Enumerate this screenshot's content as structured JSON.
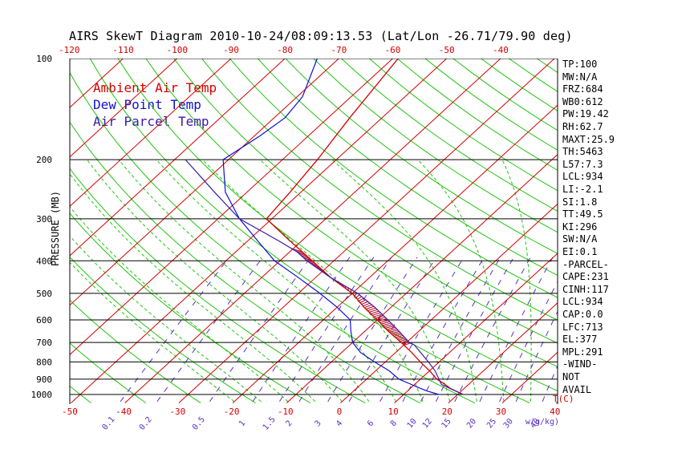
{
  "chart_data": {
    "type": "line",
    "title": "AIRS SkewT Diagram 2010-10-24/08:09:13.53 (Lat/Lon -26.71/79.90 deg)",
    "ylabel": "PRESSURE (MB)",
    "xlabel": "T(C)",
    "mixing_ratio_label": "w(g/kg)",
    "y_scale": "log",
    "ylim": [
      1050,
      100
    ],
    "pressure_ticks": [
      100,
      200,
      300,
      400,
      500,
      600,
      700,
      800,
      900,
      1000
    ],
    "bottom_temp_ticks": [
      -50,
      -40,
      -30,
      -20,
      -10,
      0,
      10,
      20,
      30,
      40
    ],
    "top_temp_ticks": [
      -120,
      -110,
      -100,
      -90,
      -80,
      -70,
      -60,
      -50,
      -40
    ],
    "mixing_ratio_ticks": [
      "0.1",
      "0.2",
      "0.5",
      "1",
      "1.5",
      "2",
      "3",
      "4",
      "6",
      "8",
      "10",
      "12",
      "15",
      "20",
      "25",
      "30",
      "40"
    ],
    "legend": [
      {
        "name": "Ambient Air Temp",
        "color": "#d40000"
      },
      {
        "name": "Dew Point Temp",
        "color": "#1010d0"
      },
      {
        "name": "Air Parcel Temp",
        "color": "#3a1aa8"
      }
    ],
    "series": [
      {
        "name": "Ambient Air Temp",
        "color": "#d40000",
        "points": [
          [
            1000,
            21
          ],
          [
            960,
            17.5
          ],
          [
            925,
            15
          ],
          [
            900,
            13
          ],
          [
            850,
            10
          ],
          [
            800,
            6.5
          ],
          [
            750,
            3
          ],
          [
            700,
            -1
          ],
          [
            650,
            -5.5
          ],
          [
            600,
            -10
          ],
          [
            550,
            -15
          ],
          [
            500,
            -20
          ],
          [
            450,
            -27
          ],
          [
            400,
            -34
          ],
          [
            350,
            -42
          ],
          [
            300,
            -51
          ],
          [
            250,
            -52
          ],
          [
            200,
            -53.5
          ],
          [
            150,
            -56
          ],
          [
            100,
            -59
          ]
        ]
      },
      {
        "name": "Dew Point Temp",
        "color": "#1010d0",
        "points": [
          [
            1000,
            16.5
          ],
          [
            975,
            13.5
          ],
          [
            950,
            11
          ],
          [
            900,
            6
          ],
          [
            850,
            2.5
          ],
          [
            800,
            -2
          ],
          [
            750,
            -6.5
          ],
          [
            700,
            -10
          ],
          [
            650,
            -12.5
          ],
          [
            600,
            -15
          ],
          [
            550,
            -20
          ],
          [
            500,
            -26
          ],
          [
            450,
            -33
          ],
          [
            400,
            -41
          ],
          [
            350,
            -48
          ],
          [
            300,
            -56
          ],
          [
            250,
            -64
          ],
          [
            200,
            -71
          ],
          [
            170,
            -69
          ],
          [
            150,
            -68
          ],
          [
            130,
            -69
          ],
          [
            100,
            -74
          ]
        ]
      },
      {
        "name": "Air Parcel Temp",
        "color": "#3a1aa8",
        "points": [
          [
            1000,
            21
          ],
          [
            934,
            15
          ],
          [
            850,
            11
          ],
          [
            800,
            8
          ],
          [
            713,
            2
          ],
          [
            700,
            0.5
          ],
          [
            650,
            -3.5
          ],
          [
            600,
            -8
          ],
          [
            550,
            -13
          ],
          [
            500,
            -19
          ],
          [
            450,
            -27
          ],
          [
            400,
            -35
          ],
          [
            377,
            -38.5
          ],
          [
            350,
            -44
          ],
          [
            300,
            -56
          ],
          [
            250,
            -66
          ],
          [
            200,
            -78
          ]
        ]
      }
    ],
    "cape_region": {
      "pressure_top": 377,
      "pressure_bottom": 713
    }
  },
  "indices": [
    "TP:100",
    "MW:N/A",
    "FRZ:684",
    "WB0:612",
    "PW:19.42",
    "RH:62.7",
    "MAXT:25.9",
    "TH:5463",
    "L57:7.3",
    "LCL:934",
    "LI:-2.1",
    "SI:1.8",
    "TT:49.5",
    "KI:296",
    "SW:N/A",
    "EI:0.1",
    "-PARCEL-",
    "CAPE:231",
    "CINH:117",
    "LCL:934",
    "CAP:0.0",
    "LFC:713",
    "EL:377",
    "MPL:291",
    "-WIND-",
    "NOT",
    "AVAIL"
  ]
}
